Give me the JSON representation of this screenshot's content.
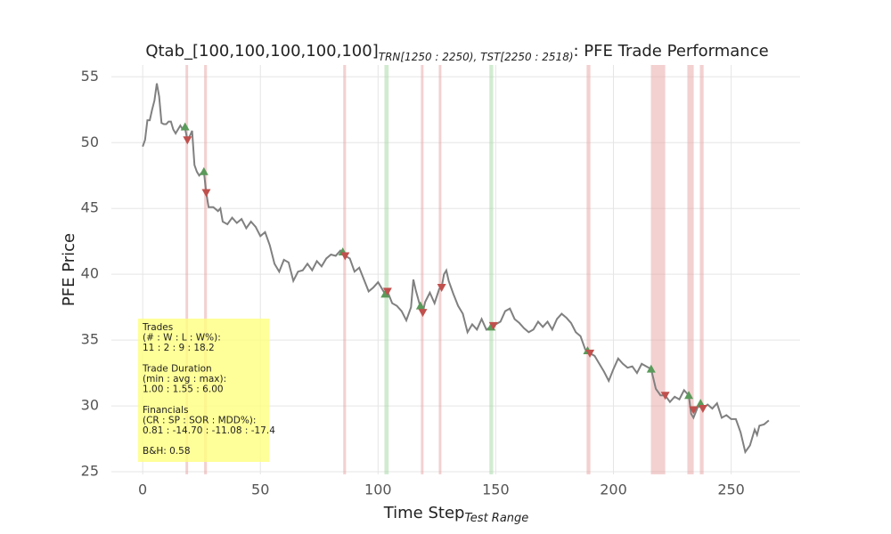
{
  "chart_data": {
    "type": "line",
    "title": "Qtab_[100,100,100,100,100]",
    "title_subscript": "TRN[1250 : 2250), TST[2250 : 2518)",
    "title_suffix": ": PFE Trade Performance",
    "x_label": "Time Step",
    "x_label_subscript": "Test Range",
    "y_label": "PFE Price",
    "color": "#808080",
    "grid": true,
    "xlim": [
      -13.3,
      279.3
    ],
    "ylim": [
      24.8,
      55.9
    ],
    "xticks": [
      0,
      50,
      100,
      150,
      200,
      250
    ],
    "yticks": [
      25,
      30,
      35,
      40,
      45,
      50,
      55
    ],
    "x": [
      0,
      1,
      2,
      3,
      4,
      5,
      6,
      7,
      8,
      9,
      10,
      11,
      12,
      13,
      14,
      15,
      16,
      17,
      18,
      19,
      20,
      21,
      22,
      23,
      24,
      25,
      26,
      27,
      28,
      30,
      32,
      33,
      34,
      36,
      38,
      40,
      42,
      44,
      46,
      48,
      50,
      52,
      54,
      56,
      58,
      60,
      62,
      64,
      66,
      68,
      70,
      72,
      74,
      76,
      78,
      80,
      82,
      84,
      85,
      86,
      88,
      90,
      92,
      94,
      96,
      98,
      100,
      102,
      103,
      104,
      106,
      108,
      110,
      112,
      114,
      115,
      116,
      118,
      119,
      120,
      122,
      124,
      126,
      127,
      128,
      129,
      130,
      132,
      134,
      136,
      138,
      140,
      142,
      144,
      146,
      148,
      150,
      152,
      154,
      156,
      158,
      160,
      162,
      164,
      166,
      168,
      170,
      172,
      174,
      176,
      178,
      180,
      182,
      184,
      186,
      188,
      190,
      192,
      194,
      196,
      198,
      200,
      202,
      204,
      206,
      208,
      210,
      212,
      214,
      216,
      218,
      220,
      222,
      224,
      226,
      228,
      230,
      232,
      233,
      234,
      236,
      238,
      240,
      242,
      244,
      246,
      248,
      250,
      252,
      254,
      256,
      258,
      260,
      261,
      262,
      264,
      266
    ],
    "values": [
      49.7,
      50.2,
      51.7,
      51.7,
      52.5,
      53.2,
      54.5,
      53.5,
      51.5,
      51.4,
      51.4,
      51.6,
      51.6,
      51.0,
      50.7,
      51.0,
      51.3,
      51.0,
      51.1,
      50.2,
      50.5,
      50.9,
      48.3,
      47.8,
      47.5,
      47.7,
      47.8,
      46.2,
      45.1,
      45.1,
      44.8,
      45.0,
      44.0,
      43.8,
      44.3,
      43.9,
      44.2,
      43.5,
      44.0,
      43.6,
      42.9,
      43.2,
      42.2,
      40.8,
      40.2,
      41.1,
      40.9,
      39.5,
      40.2,
      40.3,
      40.8,
      40.3,
      41.0,
      40.6,
      41.2,
      41.5,
      41.4,
      41.8,
      41.7,
      41.4,
      41.2,
      40.2,
      40.5,
      39.6,
      38.7,
      39.0,
      39.4,
      38.8,
      38.5,
      38.7,
      37.8,
      37.6,
      37.2,
      36.5,
      37.5,
      39.6,
      38.8,
      37.5,
      37.1,
      37.9,
      38.6,
      37.8,
      38.9,
      39.0,
      40.0,
      40.3,
      39.5,
      38.5,
      37.6,
      37.0,
      35.6,
      36.2,
      35.8,
      36.6,
      35.8,
      36.0,
      36.2,
      36.4,
      37.2,
      37.4,
      36.6,
      36.3,
      35.9,
      35.6,
      35.8,
      36.4,
      36.0,
      36.4,
      35.8,
      36.6,
      37.0,
      36.7,
      36.3,
      35.6,
      35.3,
      34.3,
      34.0,
      33.8,
      33.2,
      32.6,
      31.9,
      32.8,
      33.6,
      33.2,
      32.9,
      33.0,
      32.5,
      33.2,
      33.0,
      32.8,
      31.3,
      30.8,
      30.8,
      30.3,
      30.7,
      30.5,
      31.2,
      30.8,
      29.4,
      29.1,
      30.0,
      29.8,
      30.1,
      29.8,
      30.2,
      29.1,
      29.3,
      29.0,
      29.0,
      28.0,
      26.5,
      27.0,
      28.2,
      27.8,
      28.5,
      28.6,
      28.9
    ],
    "buys": {
      "color": "#5a9a5a",
      "x": [
        18,
        26,
        85,
        103,
        118,
        148,
        189,
        216,
        232,
        237
      ],
      "values": [
        51.2,
        47.8,
        41.7,
        38.5,
        37.6,
        36.0,
        34.2,
        32.8,
        30.8,
        30.2
      ]
    },
    "sells": {
      "color": "#c0504d",
      "x": [
        19,
        27,
        86,
        104,
        119,
        127,
        149,
        190,
        222,
        234,
        238
      ],
      "values": [
        50.2,
        46.2,
        41.4,
        38.7,
        37.1,
        39.0,
        36.1,
        34.0,
        30.8,
        29.7,
        29.8
      ]
    },
    "spans": [
      {
        "start": 18.2,
        "end": 19.3,
        "color": "#e8a3a3"
      },
      {
        "start": 26.1,
        "end": 27.3,
        "color": "#e8a3a3"
      },
      {
        "start": 85.2,
        "end": 86.4,
        "color": "#e8a3a3"
      },
      {
        "start": 102.7,
        "end": 104.5,
        "color": "#a3d8a3"
      },
      {
        "start": 118.2,
        "end": 119.3,
        "color": "#e8a3a3"
      },
      {
        "start": 125.8,
        "end": 126.9,
        "color": "#e8a3a3"
      },
      {
        "start": 147.3,
        "end": 148.9,
        "color": "#a3d8a3"
      },
      {
        "start": 188.6,
        "end": 190.2,
        "color": "#e8a3a3"
      },
      {
        "start": 215.9,
        "end": 222.0,
        "color": "#e8a3a3"
      },
      {
        "start": 231.4,
        "end": 234.1,
        "color": "#e8a3a3"
      },
      {
        "start": 236.7,
        "end": 238.3,
        "color": "#e8a3a3"
      }
    ],
    "annotation": [
      [
        "Trades",
        "(# : W : L : W%):",
        "11 : 2 : 9 : 18.2"
      ],
      [
        "Trade Duration",
        "(min : avg : max):",
        "1.00 : 1.55 : 6.00"
      ],
      [
        "Financials",
        "(CR : SP : SOR : MDD%):",
        "0.81 : -14.70 : -11.08 : -17.4"
      ],
      [
        "B&H: 0.58"
      ]
    ]
  }
}
